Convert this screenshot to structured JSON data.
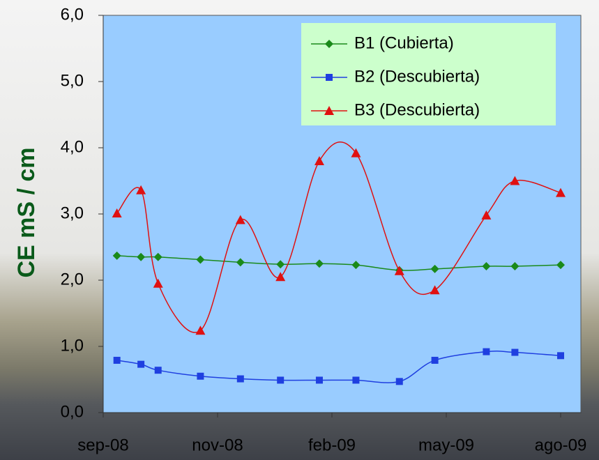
{
  "chart_data": {
    "type": "line",
    "y_label": "CE mS / cm",
    "x": [
      0.12,
      0.33,
      0.48,
      0.85,
      1.2,
      1.55,
      1.89,
      2.21,
      2.59,
      2.9,
      3.35,
      3.6,
      4.0
    ],
    "xlim": [
      0,
      4.18
    ],
    "xticks": [
      {
        "value": 0,
        "label": "sep-08"
      },
      {
        "value": 1,
        "label": "nov-08"
      },
      {
        "value": 2,
        "label": "feb-09"
      },
      {
        "value": 3,
        "label": "may-09"
      },
      {
        "value": 4,
        "label": "ago-09"
      }
    ],
    "ylim": [
      0,
      6
    ],
    "yticks": [
      {
        "value": 0,
        "label": "0,0"
      },
      {
        "value": 1,
        "label": "1,0"
      },
      {
        "value": 2,
        "label": "2,0"
      },
      {
        "value": 3,
        "label": "3,0"
      },
      {
        "value": 4,
        "label": "4,0"
      },
      {
        "value": 5,
        "label": "5,0"
      },
      {
        "value": 6,
        "label": "6,0"
      }
    ],
    "legend": "top-right",
    "series": [
      {
        "name": "B1 (Cubierta)",
        "color": "#1a8a1a",
        "marker": "diamond",
        "values": [
          2.37,
          2.35,
          2.35,
          2.31,
          2.27,
          2.24,
          2.25,
          2.23,
          2.15,
          2.17,
          2.21,
          2.21,
          2.23
        ]
      },
      {
        "name": "B2 (Descubierta)",
        "color": "#1f3fe0",
        "marker": "square",
        "values": [
          0.79,
          0.73,
          0.64,
          0.55,
          0.51,
          0.49,
          0.49,
          0.49,
          0.47,
          0.79,
          0.92,
          0.91,
          0.86
        ]
      },
      {
        "name": "B3 (Descubierta)",
        "color": "#e01010",
        "marker": "triangle",
        "values": [
          3.01,
          3.36,
          1.95,
          1.24,
          2.91,
          2.05,
          3.8,
          3.92,
          2.14,
          1.85,
          2.98,
          3.5,
          3.32
        ]
      }
    ]
  }
}
